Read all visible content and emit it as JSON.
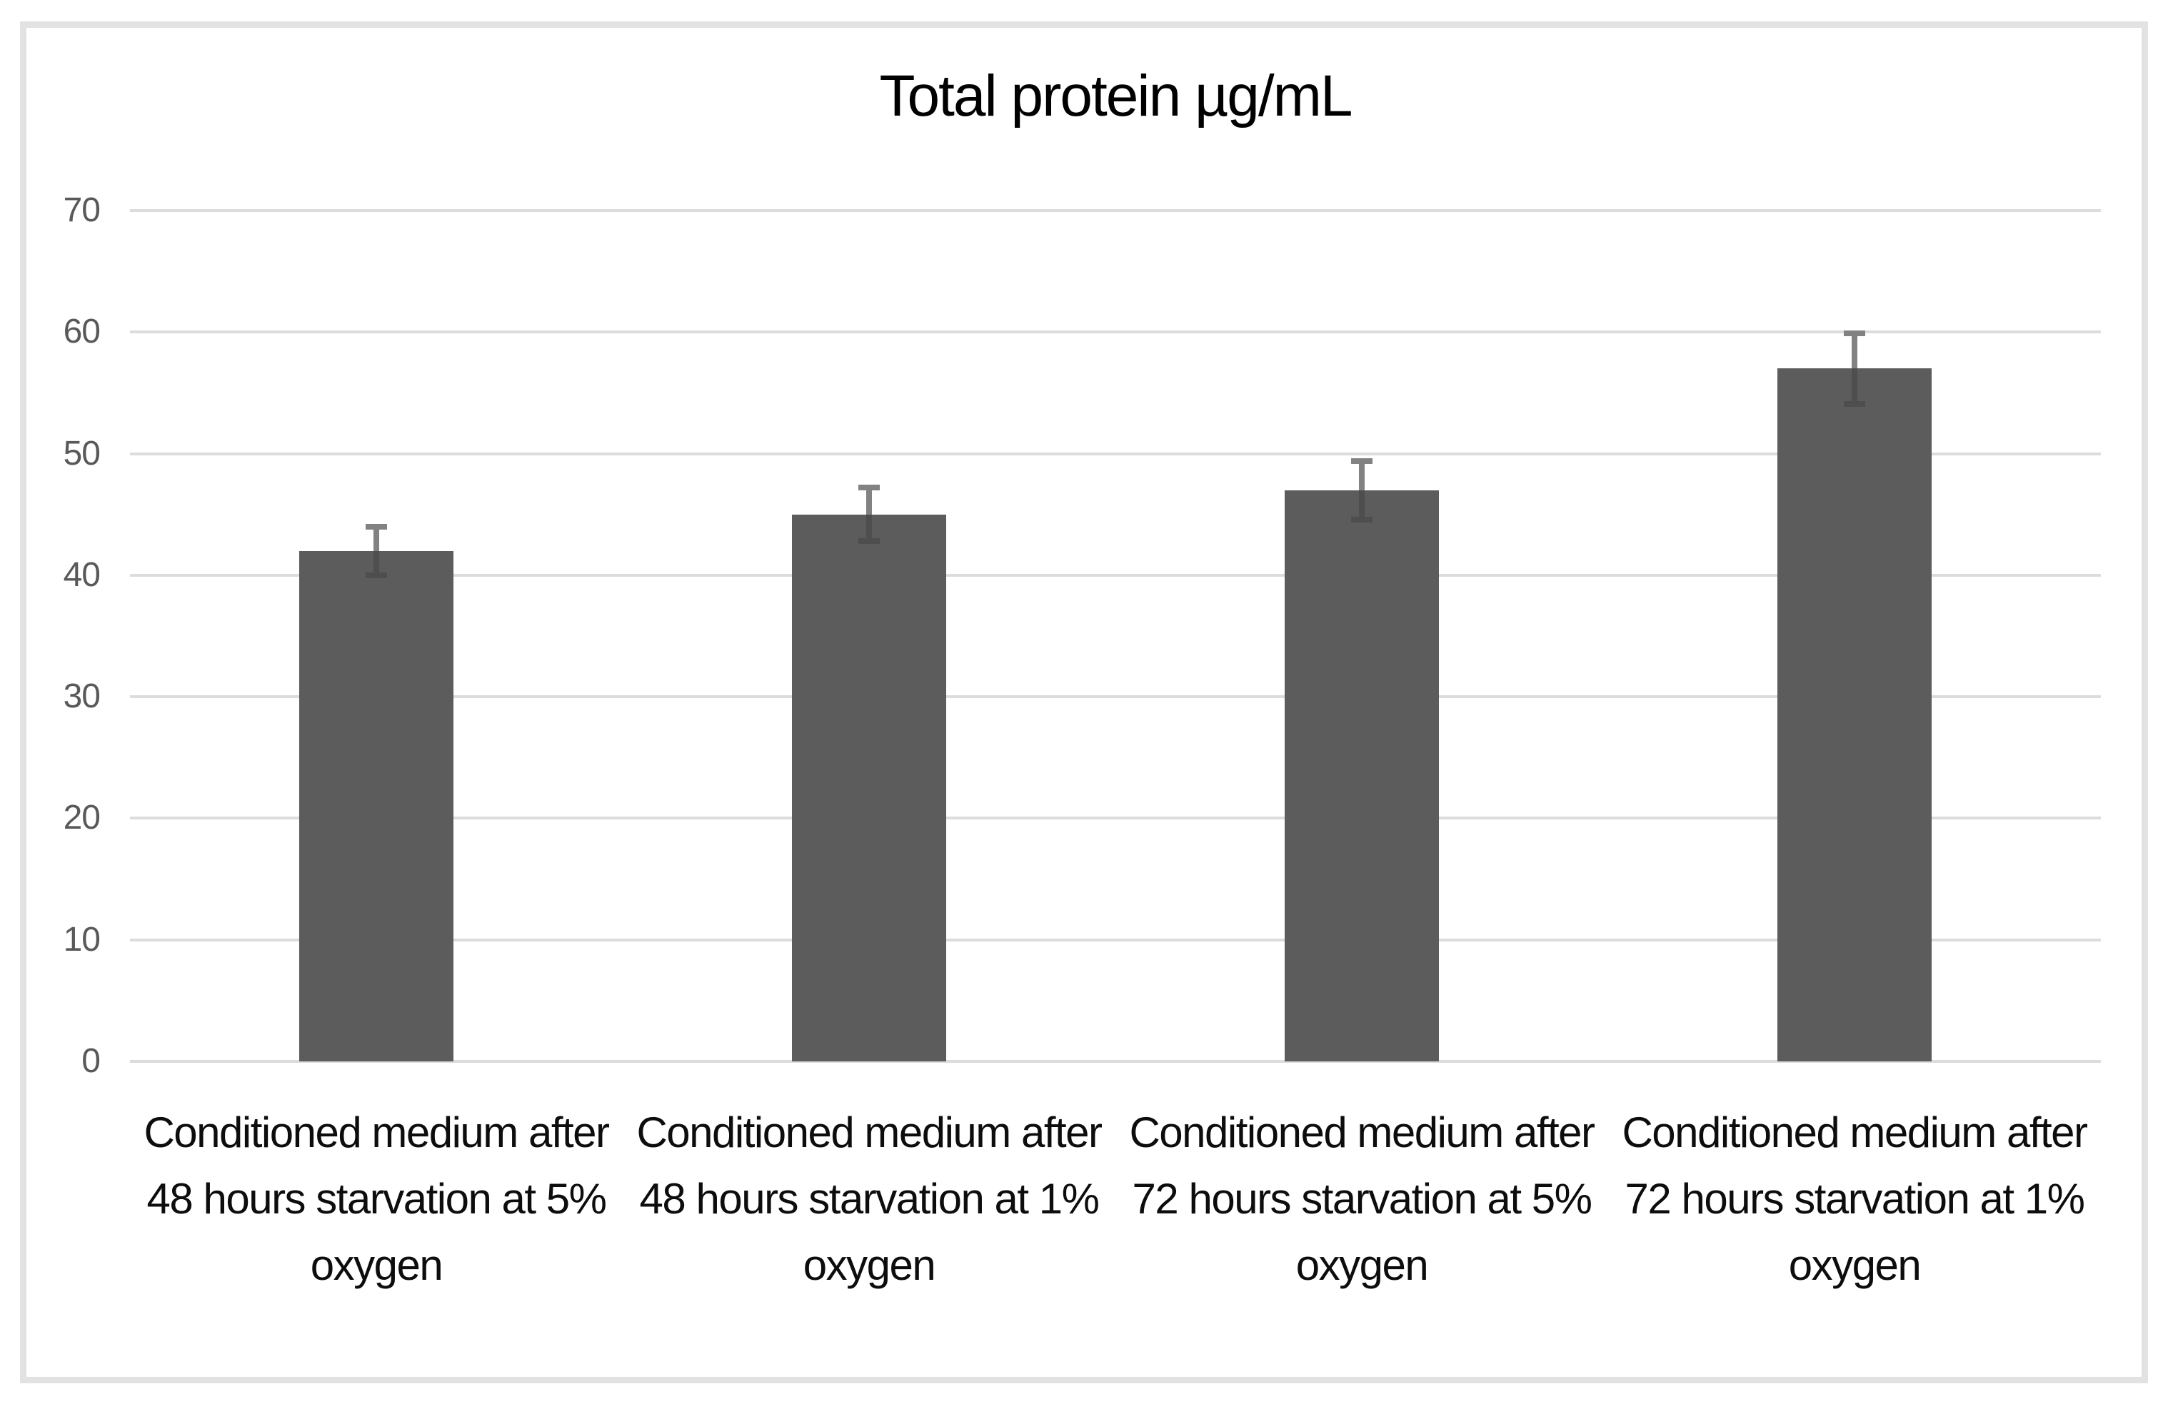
{
  "chart_data": {
    "type": "bar",
    "title": "Total protein µg/mL",
    "categories": [
      "Conditioned medium after 48 hours starvation at 5% oxygen",
      "Conditioned medium after 48 hours starvation at 1% oxygen",
      "Conditioned medium after 72 hours starvation at 5% oxygen",
      "Conditioned medium after 72 hours starvation at 1% oxygen"
    ],
    "values": [
      42,
      45,
      47,
      57
    ],
    "error_bars": [
      2,
      2.2,
      2.4,
      2.9
    ],
    "ylim": [
      0,
      70
    ],
    "ytick_step": 10,
    "ytick_labels": [
      "0",
      "10",
      "20",
      "30",
      "40",
      "50",
      "60",
      "70"
    ],
    "xlabel": "",
    "ylabel": "",
    "grid": "horizontal-only",
    "legend": "none",
    "colors": {
      "bar": "#5c5c5c",
      "error_bar_upper": "#828282",
      "error_bar_inside": "#4e4e4e",
      "gridline": "#dcdcdc",
      "tick_label": "#595959",
      "category_label": "#0d0d0d",
      "title": "#000000",
      "frame_border": "#e2e2e2",
      "background": "#ffffff"
    }
  }
}
